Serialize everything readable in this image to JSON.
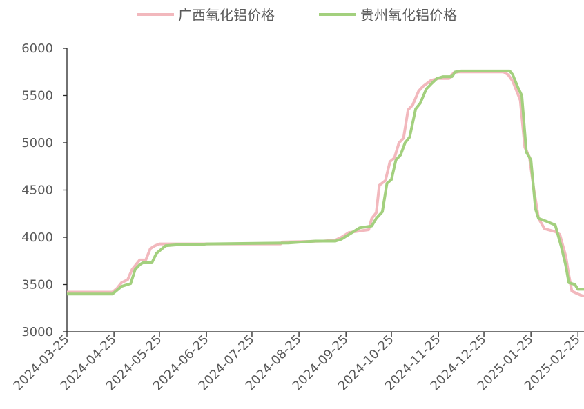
{
  "chart_data": {
    "type": "line",
    "title": "",
    "xlabel": "",
    "ylabel": "",
    "ylim": [
      3000,
      6000
    ],
    "y_ticks": [
      3000,
      3500,
      4000,
      4500,
      5000,
      5500,
      6000
    ],
    "x_range": [
      "2024-03-25",
      "2025-03-01"
    ],
    "x_tick_labels": [
      "2024-03-25",
      "2024-04-25",
      "2024-05-25",
      "2024-06-25",
      "2024-07-25",
      "2024-08-25",
      "2024-09-25",
      "2024-10-25",
      "2024-11-25",
      "2024-12-25",
      "2025-01-25",
      "2025-02-25"
    ],
    "grid": false,
    "legend_position": "top",
    "series": [
      {
        "name": "广西氧化铝价格",
        "color": "#f2b8bd",
        "points": [
          [
            "2024-03-25",
            3420
          ],
          [
            "2024-04-24",
            3420
          ],
          [
            "2024-04-27",
            3460
          ],
          [
            "2024-04-30",
            3520
          ],
          [
            "2024-05-04",
            3550
          ],
          [
            "2024-05-07",
            3660
          ],
          [
            "2024-05-09",
            3700
          ],
          [
            "2024-05-12",
            3760
          ],
          [
            "2024-05-16",
            3760
          ],
          [
            "2024-05-19",
            3880
          ],
          [
            "2024-05-22",
            3910
          ],
          [
            "2024-05-25",
            3930
          ],
          [
            "2024-06-20",
            3930
          ],
          [
            "2024-06-25",
            3930
          ],
          [
            "2024-08-13",
            3930
          ],
          [
            "2024-08-14",
            3950
          ],
          [
            "2024-09-10",
            3960
          ],
          [
            "2024-09-18",
            3970
          ],
          [
            "2024-09-22",
            4000
          ],
          [
            "2024-09-27",
            4050
          ],
          [
            "2024-10-10",
            4080
          ],
          [
            "2024-10-12",
            4200
          ],
          [
            "2024-10-15",
            4260
          ],
          [
            "2024-10-17",
            4550
          ],
          [
            "2024-10-21",
            4600
          ],
          [
            "2024-10-24",
            4800
          ],
          [
            "2024-10-27",
            4840
          ],
          [
            "2024-10-30",
            5000
          ],
          [
            "2024-11-02",
            5050
          ],
          [
            "2024-11-05",
            5350
          ],
          [
            "2024-11-08",
            5400
          ],
          [
            "2024-11-12",
            5550
          ],
          [
            "2024-11-15",
            5600
          ],
          [
            "2024-11-20",
            5660
          ],
          [
            "2024-11-25",
            5680
          ],
          [
            "2024-12-02",
            5680
          ],
          [
            "2024-12-05",
            5740
          ],
          [
            "2024-12-08",
            5750
          ],
          [
            "2025-01-07",
            5750
          ],
          [
            "2025-01-10",
            5720
          ],
          [
            "2025-01-13",
            5650
          ],
          [
            "2025-01-16",
            5530
          ],
          [
            "2025-01-18",
            5450
          ],
          [
            "2025-01-21",
            4950
          ],
          [
            "2025-01-24",
            4850
          ],
          [
            "2025-01-27",
            4500
          ],
          [
            "2025-01-30",
            4200
          ],
          [
            "2025-02-03",
            4090
          ],
          [
            "2025-02-10",
            4060
          ],
          [
            "2025-02-13",
            4030
          ],
          [
            "2025-02-17",
            3800
          ],
          [
            "2025-02-19",
            3600
          ],
          [
            "2025-02-21",
            3430
          ],
          [
            "2025-02-25",
            3400
          ],
          [
            "2025-02-28",
            3380
          ],
          [
            "2025-03-08",
            3380
          ]
        ]
      },
      {
        "name": "贵州氧化铝价格",
        "color": "#a3d07e",
        "points": [
          [
            "2024-03-25",
            3400
          ],
          [
            "2024-04-24",
            3400
          ],
          [
            "2024-04-27",
            3440
          ],
          [
            "2024-04-30",
            3480
          ],
          [
            "2024-05-06",
            3510
          ],
          [
            "2024-05-09",
            3660
          ],
          [
            "2024-05-12",
            3710
          ],
          [
            "2024-05-14",
            3730
          ],
          [
            "2024-05-20",
            3730
          ],
          [
            "2024-05-23",
            3830
          ],
          [
            "2024-05-26",
            3870
          ],
          [
            "2024-05-29",
            3910
          ],
          [
            "2024-06-05",
            3920
          ],
          [
            "2024-06-20",
            3920
          ],
          [
            "2024-06-25",
            3930
          ],
          [
            "2024-08-18",
            3940
          ],
          [
            "2024-09-05",
            3960
          ],
          [
            "2024-09-18",
            3960
          ],
          [
            "2024-09-22",
            3980
          ],
          [
            "2024-09-26",
            4020
          ],
          [
            "2024-10-04",
            4100
          ],
          [
            "2024-10-12",
            4120
          ],
          [
            "2024-10-15",
            4200
          ],
          [
            "2024-10-19",
            4270
          ],
          [
            "2024-10-22",
            4570
          ],
          [
            "2024-10-25",
            4610
          ],
          [
            "2024-10-28",
            4820
          ],
          [
            "2024-10-31",
            4870
          ],
          [
            "2024-11-03",
            5000
          ],
          [
            "2024-11-06",
            5060
          ],
          [
            "2024-11-10",
            5360
          ],
          [
            "2024-11-13",
            5420
          ],
          [
            "2024-11-17",
            5570
          ],
          [
            "2024-11-20",
            5620
          ],
          [
            "2024-11-24",
            5680
          ],
          [
            "2024-11-28",
            5700
          ],
          [
            "2024-12-04",
            5700
          ],
          [
            "2024-12-06",
            5750
          ],
          [
            "2024-12-10",
            5760
          ],
          [
            "2025-01-11",
            5760
          ],
          [
            "2025-01-13",
            5720
          ],
          [
            "2025-01-16",
            5600
          ],
          [
            "2025-01-19",
            5500
          ],
          [
            "2025-01-22",
            4900
          ],
          [
            "2025-01-25",
            4820
          ],
          [
            "2025-01-28",
            4300
          ],
          [
            "2025-01-30",
            4200
          ],
          [
            "2025-02-04",
            4170
          ],
          [
            "2025-02-10",
            4130
          ],
          [
            "2025-02-14",
            3900
          ],
          [
            "2025-02-17",
            3700
          ],
          [
            "2025-02-19",
            3520
          ],
          [
            "2025-02-23",
            3500
          ],
          [
            "2025-02-25",
            3450
          ],
          [
            "2025-03-04",
            3450
          ],
          [
            "2025-03-08",
            3430
          ]
        ]
      }
    ]
  }
}
